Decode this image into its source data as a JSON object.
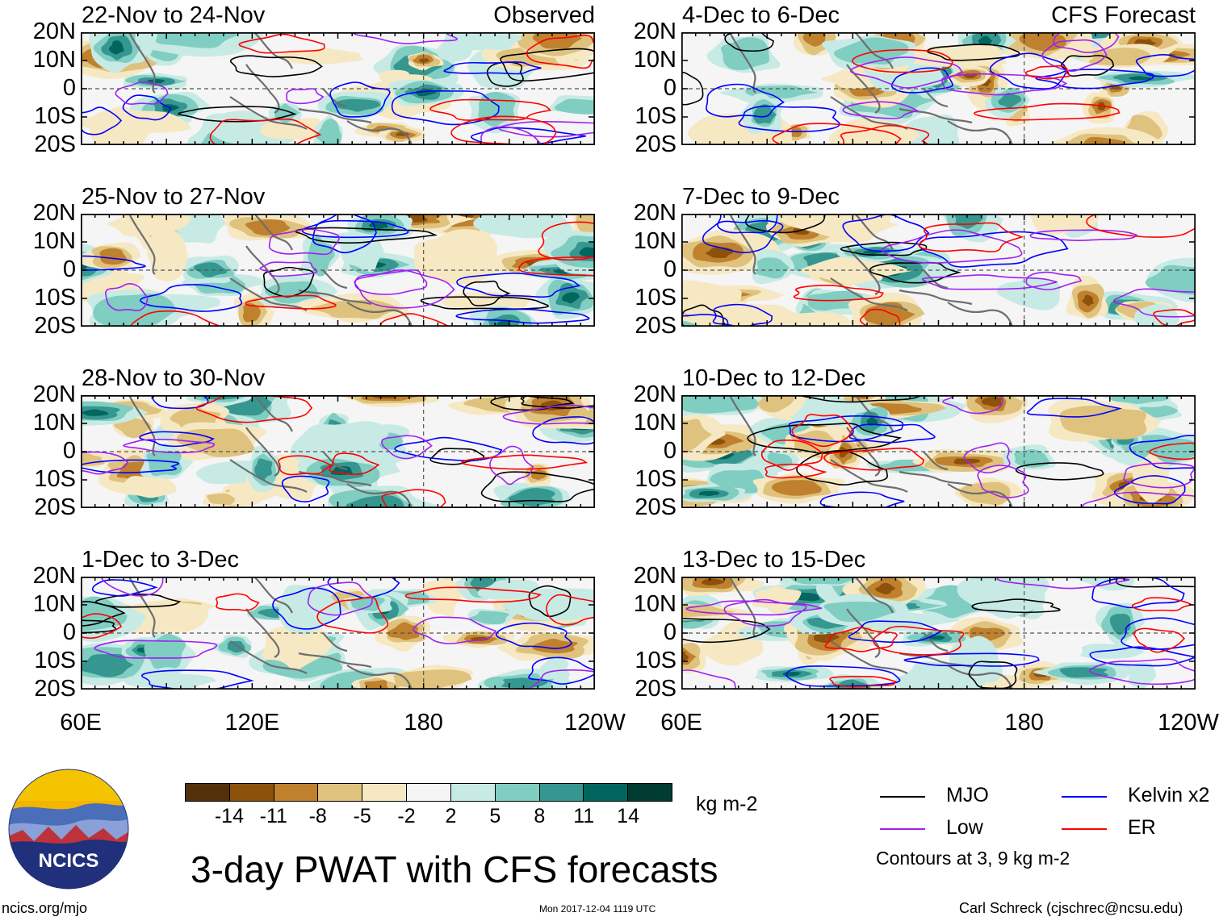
{
  "title": "3-day PWAT with CFS forecasts",
  "panels": [
    {
      "title": "22-Nov to 24-Nov",
      "tag": "Observed",
      "col": 0,
      "row": 0
    },
    {
      "title": "25-Nov to 27-Nov",
      "tag": "",
      "col": 0,
      "row": 1
    },
    {
      "title": "28-Nov to 30-Nov",
      "tag": "",
      "col": 0,
      "row": 2
    },
    {
      "title": "1-Dec to 3-Dec",
      "tag": "",
      "col": 0,
      "row": 3
    },
    {
      "title": "4-Dec to 6-Dec",
      "tag": "CFS Forecast",
      "col": 1,
      "row": 0
    },
    {
      "title": "7-Dec to 9-Dec",
      "tag": "",
      "col": 1,
      "row": 1
    },
    {
      "title": "10-Dec to 12-Dec",
      "tag": "",
      "col": 1,
      "row": 2
    },
    {
      "title": "13-Dec to 15-Dec",
      "tag": "",
      "col": 1,
      "row": 3
    }
  ],
  "axes": {
    "y_ticks": [
      "20N",
      "10N",
      "0",
      "10S",
      "20S"
    ],
    "x_ticks": [
      "60E",
      "120E",
      "180",
      "120W"
    ]
  },
  "colorbar": {
    "ticks": [
      "-14",
      "-11",
      "-8",
      "-5",
      "-2",
      "2",
      "5",
      "8",
      "11",
      "14"
    ],
    "colors": [
      "#54300a",
      "#8c510a",
      "#bf812d",
      "#dfc27d",
      "#f6e8c3",
      "#f5f5f5",
      "#c7eae5",
      "#80cdc1",
      "#35978f",
      "#01665e",
      "#003c30"
    ],
    "units": "kg m-2"
  },
  "legend": [
    {
      "label": "MJO",
      "color": "#000000"
    },
    {
      "label": "Kelvin x2",
      "color": "#0000ff"
    },
    {
      "label": "Low",
      "color": "#a020f0"
    },
    {
      "label": "ER",
      "color": "#ff0000"
    }
  ],
  "contours_note": "Contours at 3, 9 kg m-2",
  "logo_text": "NCICS",
  "footer": {
    "left": "ncics.org/mjo",
    "center": "Mon 2017-12-04 1119 UTC",
    "right": "Carl Schreck (cjschrec@ncsu.edu)"
  },
  "chart_data": {
    "type": "heatmap",
    "variable": "3-day precipitable water anomaly",
    "units": "kg m-2",
    "x_range": [
      60,
      240
    ],
    "y_range": [
      -20,
      20
    ],
    "levels": [
      -14,
      -11,
      -8,
      -5,
      -2,
      2,
      5,
      8,
      11,
      14
    ],
    "contour_levels": [
      3,
      9
    ]
  }
}
